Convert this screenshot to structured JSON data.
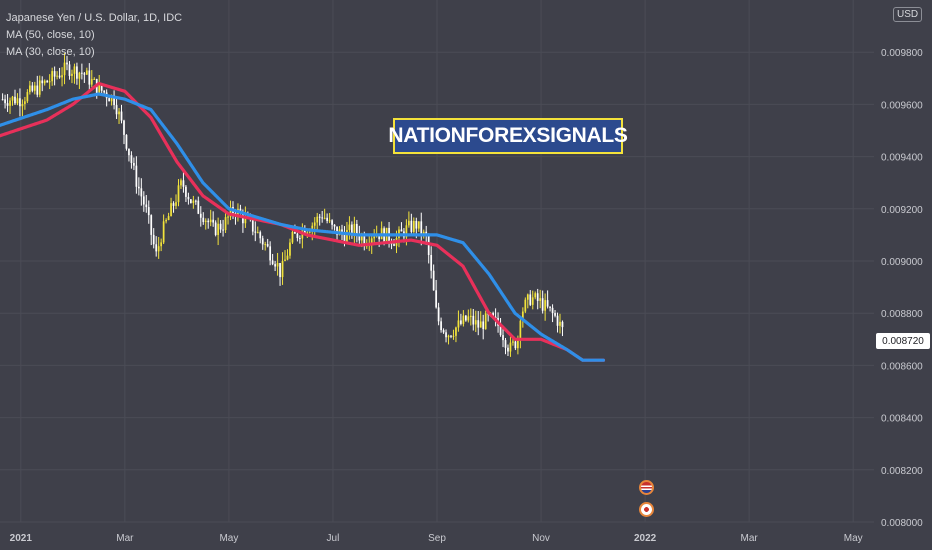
{
  "header": {
    "symbol_line": "Japanese Yen / U.S. Dollar, 1D, IDC",
    "ma_slow_label": "MA (50, close, 10)",
    "ma_fast_label": "MA (30, close, 10)"
  },
  "watermark": "NATIONFOREXSIGNALS",
  "currency_badge": "USD",
  "last_price_label": "0.008720",
  "colors": {
    "background": "#3f404a",
    "grid": "#4b4c56",
    "candle_up": "#f2e33b",
    "candle_down": "#ffffff",
    "ma_slow": "#2f8fe8",
    "ma_fast": "#e8305a",
    "axis_text": "#c9cad0",
    "watermark_bg": "#2c4a8e",
    "watermark_border": "#f4e23a"
  },
  "events": [
    {
      "icon": "us-flag-icon"
    },
    {
      "icon": "japan-flag-icon"
    }
  ],
  "chart_data": {
    "type": "candlestick",
    "title": "Japanese Yen / U.S. Dollar, 1D, IDC",
    "x_ticks": [
      "2021",
      "Mar",
      "May",
      "Jul",
      "Sep",
      "Nov",
      "2022",
      "Mar",
      "May"
    ],
    "y_ticks": [
      "0.008000",
      "0.008200",
      "0.008400",
      "0.008600",
      "0.008800",
      "0.009000",
      "0.009200",
      "0.009400",
      "0.009600",
      "0.009800"
    ],
    "ylim": [
      0.008,
      0.01
    ],
    "xlim_months": [
      -0.4,
      16.4
    ],
    "last_price": 0.00872,
    "close_series": {
      "name": "",
      "points": [
        [
          0.0,
          0.00962
        ],
        [
          0.3,
          0.00966
        ],
        [
          0.6,
          0.0097
        ],
        [
          0.9,
          0.00974
        ],
        [
          1.2,
          0.00972
        ],
        [
          1.5,
          0.00966
        ],
        [
          1.8,
          0.00962
        ],
        [
          2.0,
          0.00948
        ],
        [
          2.2,
          0.00932
        ],
        [
          2.4,
          0.0092
        ],
        [
          2.6,
          0.00902
        ],
        [
          2.7,
          0.0091
        ],
        [
          2.9,
          0.0092
        ],
        [
          3.1,
          0.0093
        ],
        [
          3.3,
          0.00922
        ],
        [
          3.5,
          0.00918
        ],
        [
          3.7,
          0.00912
        ],
        [
          3.9,
          0.00914
        ],
        [
          4.1,
          0.0092
        ],
        [
          4.3,
          0.00916
        ],
        [
          4.5,
          0.00912
        ],
        [
          4.7,
          0.00906
        ],
        [
          4.9,
          0.009
        ],
        [
          5.0,
          0.00895
        ],
        [
          5.2,
          0.00908
        ],
        [
          5.4,
          0.00912
        ],
        [
          5.6,
          0.00914
        ],
        [
          5.8,
          0.00918
        ],
        [
          6.0,
          0.00912
        ],
        [
          6.2,
          0.0091
        ],
        [
          6.4,
          0.00912
        ],
        [
          6.6,
          0.00908
        ],
        [
          6.8,
          0.00911
        ],
        [
          7.0,
          0.0091
        ],
        [
          7.2,
          0.00908
        ],
        [
          7.4,
          0.00912
        ],
        [
          7.6,
          0.00914
        ],
        [
          7.8,
          0.00908
        ],
        [
          8.0,
          0.00878
        ],
        [
          8.2,
          0.00872
        ],
        [
          8.4,
          0.00875
        ],
        [
          8.6,
          0.00878
        ],
        [
          8.8,
          0.00875
        ],
        [
          9.0,
          0.00878
        ],
        [
          9.2,
          0.00875
        ],
        [
          9.4,
          0.00866
        ],
        [
          9.55,
          0.0087
        ],
        [
          9.6,
          0.0088
        ],
        [
          9.8,
          0.00886
        ],
        [
          10.0,
          0.00884
        ],
        [
          10.2,
          0.0088
        ],
        [
          10.3,
          0.00878
        ],
        [
          10.45,
          0.00872
        ]
      ]
    },
    "series": [
      {
        "name": "MA (50, close, 10)",
        "values": [
          [
            -0.4,
            0.00952
          ],
          [
            0.5,
            0.00958
          ],
          [
            1.0,
            0.00962
          ],
          [
            1.5,
            0.00964
          ],
          [
            2.0,
            0.00962
          ],
          [
            2.5,
            0.00958
          ],
          [
            3.0,
            0.00945
          ],
          [
            3.5,
            0.0093
          ],
          [
            4.0,
            0.0092
          ],
          [
            4.5,
            0.00917
          ],
          [
            5.0,
            0.00914
          ],
          [
            5.5,
            0.00912
          ],
          [
            6.0,
            0.00911
          ],
          [
            6.5,
            0.0091
          ],
          [
            7.0,
            0.0091
          ],
          [
            7.5,
            0.0091
          ],
          [
            8.0,
            0.0091
          ],
          [
            8.5,
            0.00907
          ],
          [
            9.0,
            0.00895
          ],
          [
            9.5,
            0.0088
          ],
          [
            10.0,
            0.00872
          ],
          [
            10.5,
            0.00866
          ],
          [
            10.8,
            0.00862
          ],
          [
            11.2,
            0.00862
          ]
        ]
      },
      {
        "name": "MA (30, close, 10)",
        "values": [
          [
            -0.4,
            0.00948
          ],
          [
            0.5,
            0.00954
          ],
          [
            1.0,
            0.0096
          ],
          [
            1.5,
            0.00968
          ],
          [
            2.0,
            0.00965
          ],
          [
            2.5,
            0.00955
          ],
          [
            3.0,
            0.00938
          ],
          [
            3.5,
            0.00925
          ],
          [
            4.0,
            0.00918
          ],
          [
            4.5,
            0.00916
          ],
          [
            5.0,
            0.00914
          ],
          [
            5.5,
            0.0091
          ],
          [
            6.0,
            0.00908
          ],
          [
            6.5,
            0.00906
          ],
          [
            7.0,
            0.00907
          ],
          [
            7.5,
            0.00908
          ],
          [
            8.0,
            0.00906
          ],
          [
            8.5,
            0.00898
          ],
          [
            9.0,
            0.0088
          ],
          [
            9.5,
            0.0087
          ],
          [
            10.0,
            0.0087
          ],
          [
            10.5,
            0.00866
          ],
          [
            10.8,
            0.00862
          ],
          [
            11.2,
            0.00862
          ]
        ]
      }
    ],
    "xlabel": "",
    "ylabel": "",
    "grid": true,
    "legend_position": "top-left"
  }
}
